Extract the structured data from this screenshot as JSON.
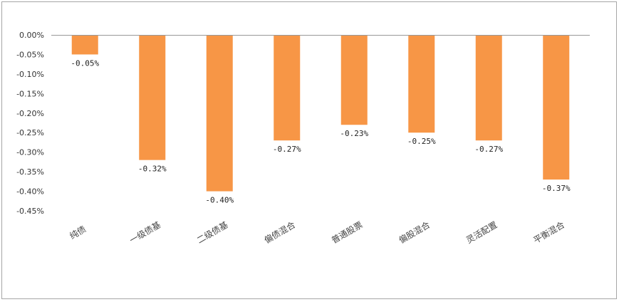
{
  "chart_data": {
    "type": "bar",
    "title": "",
    "xlabel": "",
    "ylabel": "",
    "categories": [
      "纯债",
      "一级债基",
      "二级债基",
      "偏债混合",
      "普通股票",
      "偏股混合",
      "灵活配置",
      "平衡混合"
    ],
    "values": [
      -0.05,
      -0.32,
      -0.4,
      -0.27,
      -0.23,
      -0.25,
      -0.27,
      -0.37
    ],
    "data_labels": [
      "-0.05%",
      "-0.32%",
      "-0.40%",
      "-0.27%",
      "-0.23%",
      "-0.25%",
      "-0.27%",
      "-0.37%"
    ],
    "y_ticks": [
      0,
      -0.05,
      -0.1,
      -0.15,
      -0.2,
      -0.25,
      -0.3,
      -0.35,
      -0.4,
      -0.45
    ],
    "y_tick_labels": [
      "0.00%",
      "-0.05%",
      "-0.10%",
      "-0.15%",
      "-0.20%",
      "-0.25%",
      "-0.30%",
      "-0.35%",
      "-0.40%",
      "-0.45%"
    ],
    "ylim": [
      -0.45,
      0
    ],
    "grid": false,
    "legend": "none",
    "colors": {
      "bar": "#F79646",
      "axis": "#999999"
    }
  }
}
